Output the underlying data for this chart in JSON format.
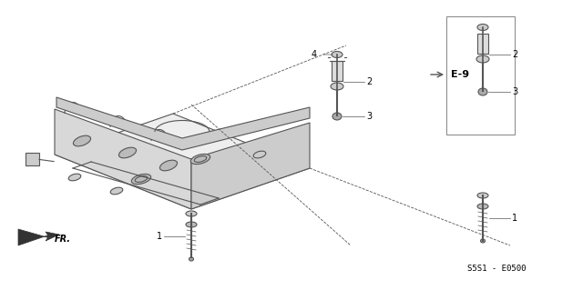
{
  "bg_color": "#ffffff",
  "line_color": "#555555",
  "label_color": "#000000",
  "title_text": "",
  "part_label_1": "1",
  "part_label_2": "2",
  "part_label_3": "3",
  "part_label_4": "4",
  "ref_label": "E-9",
  "part_code": "S5S1 - E0500",
  "fr_label": "FR.",
  "fig_width": 6.4,
  "fig_height": 3.19,
  "dpi": 100
}
